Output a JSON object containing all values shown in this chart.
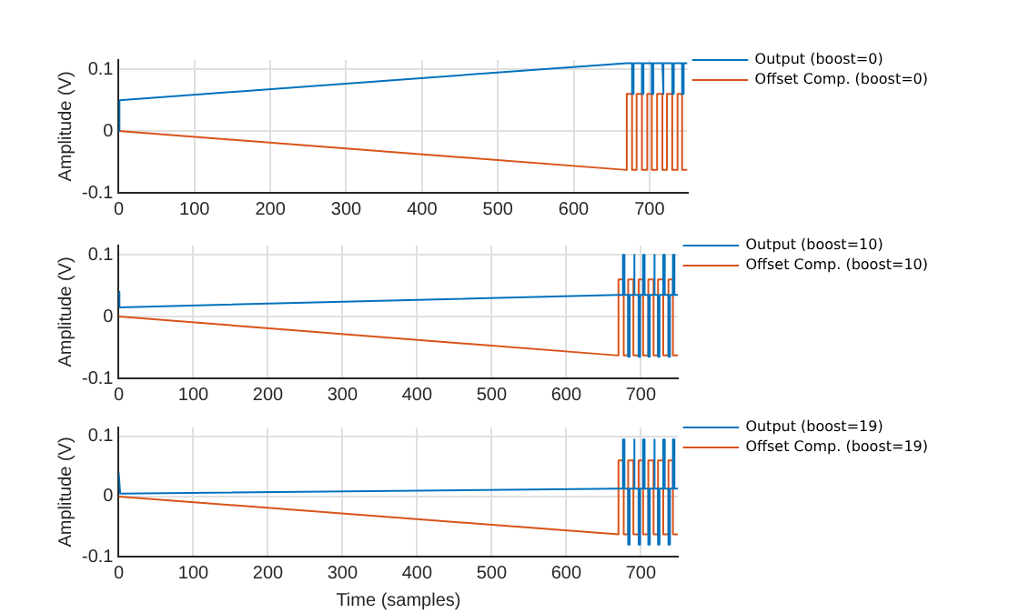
{
  "chart_data": [
    {
      "type": "line",
      "ylabel": "Amplitude (V)",
      "xlim": [
        0,
        750
      ],
      "xticks": [
        0,
        100,
        200,
        300,
        400,
        500,
        600,
        700
      ],
      "ylim": [
        -0.1,
        0.115
      ],
      "yticks": [
        -0.1,
        0,
        0.1
      ],
      "grid": true,
      "legend": "right",
      "marker": "none",
      "line_style": "solid",
      "series": [
        {
          "name": "Output (boost=0)",
          "color": "#0072bd",
          "x": [
            0,
            1,
            670,
            677,
            677,
            679,
            679,
            690,
            690,
            692,
            692,
            703,
            703,
            705,
            705,
            717,
            717,
            719,
            719,
            730,
            730,
            732,
            732,
            743,
            743,
            745,
            745,
            750
          ],
          "values": [
            0,
            0.05,
            0.11,
            0.11,
            0.06,
            0.06,
            0.11,
            0.11,
            0.06,
            0.06,
            0.11,
            0.11,
            0.06,
            0.06,
            0.11,
            0.11,
            0.06,
            0.06,
            0.11,
            0.11,
            0.06,
            0.06,
            0.11,
            0.11,
            0.06,
            0.06,
            0.11,
            0.11
          ]
        },
        {
          "name": "Offset Comp. (boost=0)",
          "color": "#d95319",
          "x": [
            0,
            670,
            670,
            677,
            677,
            683,
            683,
            690,
            690,
            697,
            697,
            703,
            703,
            710,
            710,
            717,
            717,
            723,
            723,
            730,
            730,
            737,
            737,
            743,
            743,
            750
          ],
          "values": [
            0,
            -0.063,
            0.06,
            0.06,
            -0.063,
            -0.063,
            0.06,
            0.06,
            -0.063,
            -0.063,
            0.06,
            0.06,
            -0.063,
            -0.063,
            0.06,
            0.06,
            -0.063,
            -0.063,
            0.06,
            0.06,
            -0.063,
            -0.063,
            0.06,
            0.06,
            -0.063,
            -0.063
          ]
        }
      ]
    },
    {
      "type": "line",
      "ylabel": "Amplitude (V)",
      "xlim": [
        0,
        750
      ],
      "xticks": [
        0,
        100,
        200,
        300,
        400,
        500,
        600,
        700
      ],
      "ylim": [
        -0.1,
        0.115
      ],
      "yticks": [
        -0.1,
        0,
        0.1
      ],
      "grid": true,
      "legend": "right",
      "marker": "none",
      "line_style": "solid",
      "series": [
        {
          "name": "Output (boost=10)",
          "color": "#0072bd",
          "x": [
            0,
            1,
            670,
            676,
            676,
            678,
            678,
            683,
            683,
            685,
            685,
            690,
            690,
            692,
            692,
            697,
            697,
            699,
            699,
            703,
            703,
            705,
            705,
            710,
            710,
            712,
            712,
            717,
            717,
            719,
            719,
            723,
            723,
            725,
            725,
            730,
            730,
            732,
            732,
            737,
            737,
            739,
            739,
            743,
            743,
            745,
            745,
            750
          ],
          "values": [
            0.04,
            0.015,
            0.035,
            0.035,
            0.1,
            0.1,
            0.035,
            0.035,
            -0.065,
            -0.065,
            0.035,
            0.035,
            0.1,
            0.1,
            0.035,
            0.035,
            -0.065,
            -0.065,
            0.035,
            0.035,
            0.1,
            0.1,
            0.035,
            0.035,
            -0.065,
            -0.065,
            0.035,
            0.035,
            0.1,
            0.1,
            0.035,
            0.035,
            -0.065,
            -0.065,
            0.035,
            0.035,
            0.1,
            0.1,
            0.035,
            0.035,
            -0.065,
            -0.065,
            0.035,
            0.035,
            0.1,
            0.1,
            0.035,
            0.035
          ]
        },
        {
          "name": "Offset Comp. (boost=10)",
          "color": "#d95319",
          "x": [
            0,
            670,
            670,
            677,
            677,
            683,
            683,
            690,
            690,
            697,
            697,
            703,
            703,
            710,
            710,
            717,
            717,
            723,
            723,
            730,
            730,
            737,
            737,
            743,
            743,
            750
          ],
          "values": [
            0,
            -0.063,
            0.06,
            0.06,
            -0.063,
            -0.063,
            0.06,
            0.06,
            -0.063,
            -0.063,
            0.06,
            0.06,
            -0.063,
            -0.063,
            0.06,
            0.06,
            -0.063,
            -0.063,
            0.06,
            0.06,
            -0.063,
            -0.063,
            0.06,
            0.06,
            -0.063,
            -0.063
          ]
        }
      ]
    },
    {
      "type": "line",
      "xlabel": "Time (samples)",
      "ylabel": "Amplitude (V)",
      "xlim": [
        0,
        750
      ],
      "xticks": [
        0,
        100,
        200,
        300,
        400,
        500,
        600,
        700
      ],
      "ylim": [
        -0.1,
        0.115
      ],
      "yticks": [
        -0.1,
        0,
        0.1
      ],
      "grid": true,
      "legend": "right",
      "marker": "none",
      "line_style": "solid",
      "series": [
        {
          "name": "Output (boost=19)",
          "color": "#0072bd",
          "x": [
            0,
            2,
            670,
            676,
            676,
            678,
            678,
            683,
            683,
            685,
            685,
            690,
            690,
            692,
            692,
            697,
            697,
            699,
            699,
            703,
            703,
            705,
            705,
            710,
            710,
            712,
            712,
            717,
            717,
            719,
            719,
            723,
            723,
            725,
            725,
            730,
            730,
            732,
            732,
            737,
            737,
            739,
            739,
            743,
            743,
            745,
            745,
            750
          ],
          "values": [
            0.04,
            0.005,
            0.013,
            0.013,
            0.095,
            0.095,
            0.013,
            0.013,
            -0.08,
            -0.08,
            0.013,
            0.013,
            0.095,
            0.095,
            0.013,
            0.013,
            -0.08,
            -0.08,
            0.013,
            0.013,
            0.095,
            0.095,
            0.013,
            0.013,
            -0.08,
            -0.08,
            0.013,
            0.013,
            0.095,
            0.095,
            0.013,
            0.013,
            -0.08,
            -0.08,
            0.013,
            0.013,
            0.095,
            0.095,
            0.013,
            0.013,
            -0.08,
            -0.08,
            0.013,
            0.013,
            0.095,
            0.095,
            0.013,
            0.013
          ]
        },
        {
          "name": "Offset Comp. (boost=19)",
          "color": "#d95319",
          "x": [
            0,
            670,
            670,
            677,
            677,
            683,
            683,
            690,
            690,
            697,
            697,
            703,
            703,
            710,
            710,
            717,
            717,
            723,
            723,
            730,
            730,
            737,
            737,
            743,
            743,
            750
          ],
          "values": [
            0,
            -0.063,
            0.06,
            0.06,
            -0.063,
            -0.063,
            0.06,
            0.06,
            -0.063,
            -0.063,
            0.06,
            0.06,
            -0.063,
            -0.063,
            0.06,
            0.06,
            -0.063,
            -0.063,
            0.06,
            0.06,
            -0.063,
            -0.063,
            0.06,
            0.06,
            -0.063,
            -0.063
          ]
        }
      ]
    }
  ]
}
